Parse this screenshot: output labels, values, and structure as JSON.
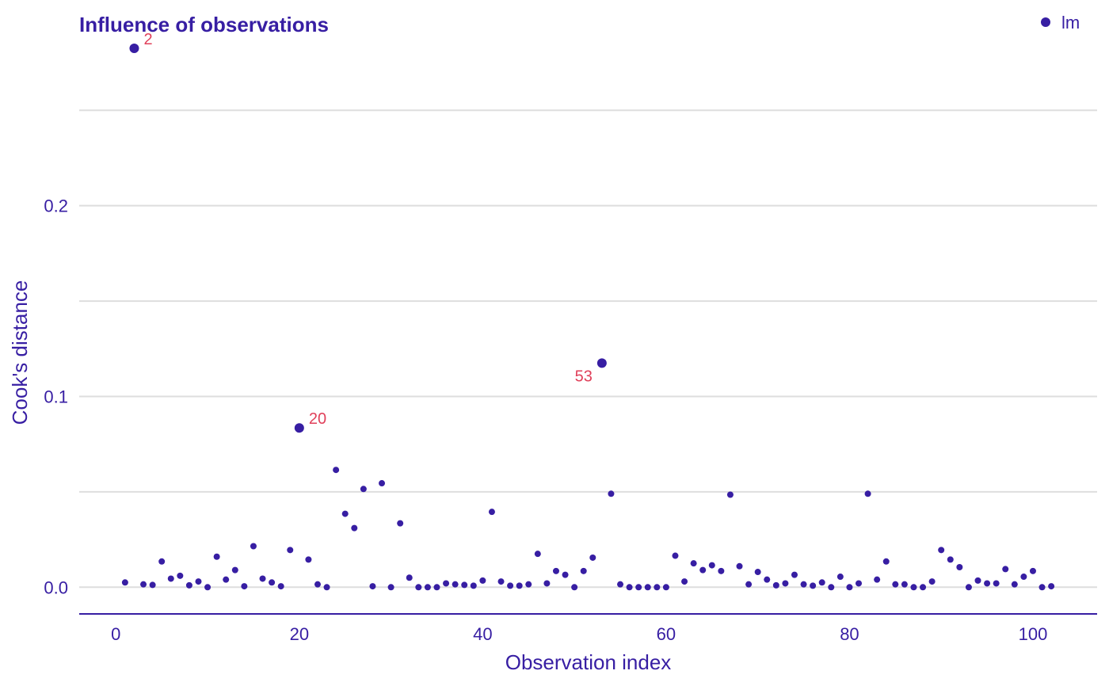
{
  "chart_data": {
    "type": "scatter",
    "title": "Influence of observations",
    "xlabel": "Observation index",
    "ylabel": "Cook's distance",
    "xlim": [
      -4,
      107
    ],
    "ylim": [
      -0.014,
      0.285
    ],
    "x_ticks": [
      0,
      20,
      40,
      60,
      80,
      100
    ],
    "x_tick_labels": [
      "0",
      "20",
      "40",
      "60",
      "80",
      "100"
    ],
    "y_ticks": [
      0,
      0.05,
      0.1,
      0.15,
      0.2,
      0.25
    ],
    "y_tick_labels": [
      "0.0",
      "",
      "0.1",
      "",
      "0.2",
      ""
    ],
    "grid": "horizontal",
    "legend": {
      "position": "top-right",
      "entries": [
        "lm"
      ]
    },
    "colors": {
      "points": "#371ea3",
      "labels": "#e0405a",
      "grid": "#dedede"
    },
    "series": [
      {
        "name": "lm",
        "x": [
          1,
          2,
          3,
          4,
          5,
          6,
          7,
          8,
          9,
          10,
          11,
          12,
          13,
          14,
          15,
          16,
          17,
          18,
          19,
          20,
          21,
          22,
          23,
          24,
          25,
          26,
          27,
          28,
          29,
          30,
          31,
          32,
          33,
          34,
          35,
          36,
          37,
          38,
          39,
          40,
          41,
          42,
          43,
          44,
          45,
          46,
          47,
          48,
          49,
          50,
          51,
          52,
          53,
          54,
          55,
          56,
          57,
          58,
          59,
          60,
          61,
          62,
          63,
          64,
          65,
          66,
          67,
          68,
          69,
          70,
          71,
          72,
          73,
          74,
          75,
          76,
          77,
          78,
          79,
          80,
          81,
          82,
          83,
          84,
          85,
          86,
          87,
          88,
          89,
          90,
          91,
          92,
          93,
          94,
          95,
          96,
          97,
          98,
          99,
          100,
          101,
          102
        ],
        "y": [
          0.0025,
          0.2825,
          0.0015,
          0.0012,
          0.0135,
          0.0045,
          0.006,
          0.001,
          0.003,
          0.0,
          0.016,
          0.004,
          0.009,
          0.0005,
          0.0215,
          0.0045,
          0.0025,
          0.0005,
          0.0195,
          0.0835,
          0.0145,
          0.0015,
          0.0,
          0.0615,
          0.0385,
          0.031,
          0.0515,
          0.0005,
          0.0545,
          0.0,
          0.0335,
          0.005,
          0.0,
          0.0,
          0.0,
          0.002,
          0.0015,
          0.0012,
          0.0008,
          0.0035,
          0.0395,
          0.003,
          0.0008,
          0.0008,
          0.0015,
          0.0175,
          0.002,
          0.0085,
          0.0065,
          0.0,
          0.0085,
          0.0155,
          0.1175,
          0.049,
          0.0015,
          0.0,
          0.0,
          0.0,
          0.0,
          0.0,
          0.0165,
          0.003,
          0.0125,
          0.009,
          0.0115,
          0.0085,
          0.0485,
          0.011,
          0.0015,
          0.008,
          0.004,
          0.001,
          0.002,
          0.0065,
          0.0015,
          0.0008,
          0.0025,
          0.0,
          0.0055,
          0.0,
          0.002,
          0.049,
          0.004,
          0.0135,
          0.0015,
          0.0015,
          0.0,
          0.0,
          0.003,
          0.0195,
          0.0145,
          0.0105,
          0.0,
          0.0035,
          0.002,
          0.002,
          0.0095,
          0.0015,
          0.0055,
          0.0085,
          0.0,
          0.0005
        ]
      }
    ],
    "highlighted": [
      {
        "x": 2,
        "y": 0.2825,
        "label": "2"
      },
      {
        "x": 20,
        "y": 0.0835,
        "label": "20"
      },
      {
        "x": 53,
        "y": 0.1175,
        "label": "53"
      }
    ]
  }
}
